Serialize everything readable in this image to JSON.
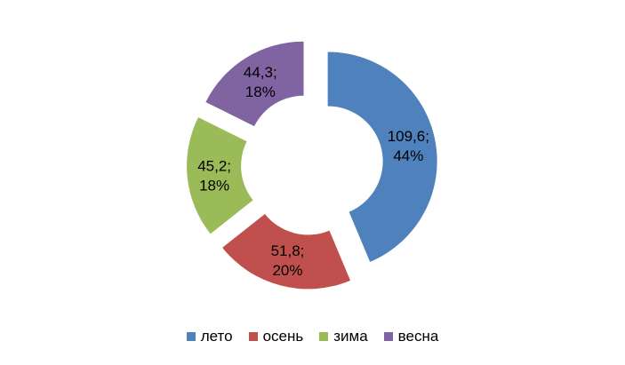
{
  "chart_data": {
    "type": "pie",
    "variant": "exploded-doughnut",
    "categories": [
      "лето",
      "осень",
      "зима",
      "весна"
    ],
    "values": [
      109.6,
      51.8,
      45.2,
      44.3
    ],
    "labels": [
      "109,6;\n44%",
      "51,8;\n20%",
      "45,2;\n18%",
      "44,3;\n18%"
    ],
    "colors": [
      "#4F81BD",
      "#C0504D",
      "#9BBB59",
      "#8064A2"
    ],
    "legend_position": "bottom"
  }
}
